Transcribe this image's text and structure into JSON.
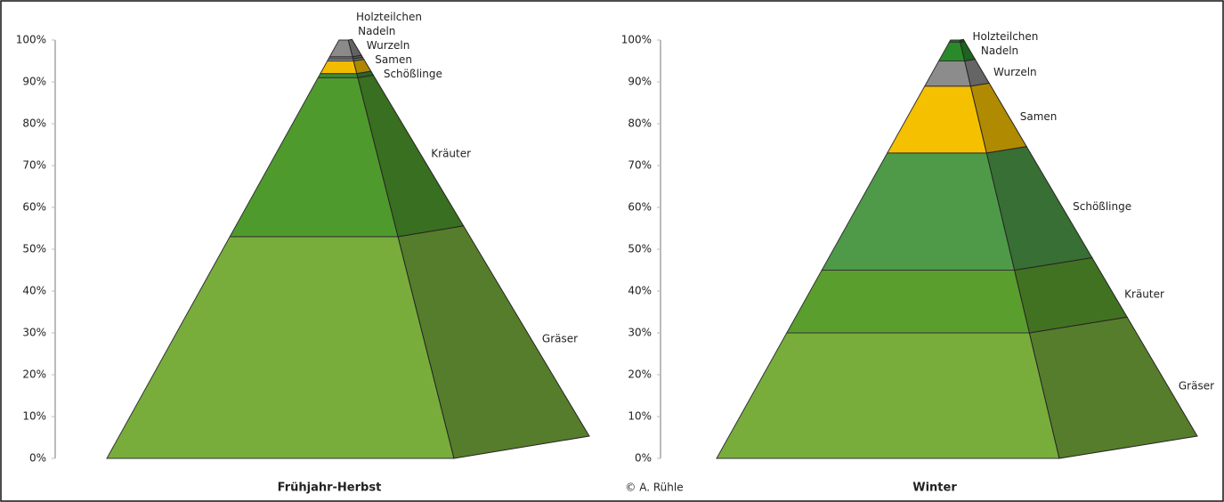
{
  "chart_data": [
    {
      "type": "pyramid",
      "title": "Frühjahr-Herbst",
      "categories": [
        "Gräser",
        "Kräuter",
        "Schößlinge",
        "Samen",
        "Wurzeln",
        "Nadeln",
        "Holzteilchen"
      ],
      "values": [
        53,
        38,
        1,
        3,
        0.5,
        0.5,
        4
      ],
      "colors": [
        "#78ad3c",
        "#4f9a2c",
        "#3f8a34",
        "#f2bb00",
        "#9a9a9a",
        "#7a7a7a",
        "#8a8a8a"
      ],
      "ylim": [
        0,
        100
      ],
      "yticks": [
        {
          "value": 0,
          "label": "0%"
        },
        {
          "value": 10,
          "label": "10%"
        },
        {
          "value": 20,
          "label": "20%"
        },
        {
          "value": 30,
          "label": "30%"
        },
        {
          "value": 40,
          "label": "40%"
        },
        {
          "value": 50,
          "label": "50%"
        },
        {
          "value": 60,
          "label": "60%"
        },
        {
          "value": 70,
          "label": "70%"
        },
        {
          "value": 80,
          "label": "80%"
        },
        {
          "value": 90,
          "label": "90%"
        },
        {
          "value": 100,
          "label": "100%"
        }
      ]
    },
    {
      "type": "pyramid",
      "title": "Winter",
      "categories": [
        "Gräser",
        "Kräuter",
        "Schößlinge",
        "Samen",
        "Wurzeln",
        "Nadeln",
        "Holzteilchen"
      ],
      "values": [
        30,
        15,
        28,
        16,
        6,
        4.5,
        0.5
      ],
      "colors": [
        "#78ad3c",
        "#5a9e2e",
        "#4e9a48",
        "#f5c000",
        "#8c8c8c",
        "#2a8a2a",
        "#1f6e1f"
      ],
      "ylim": [
        0,
        100
      ],
      "yticks": [
        {
          "value": 0,
          "label": "0%"
        },
        {
          "value": 10,
          "label": "10%"
        },
        {
          "value": 20,
          "label": "20%"
        },
        {
          "value": 30,
          "label": "30%"
        },
        {
          "value": 40,
          "label": "40%"
        },
        {
          "value": 50,
          "label": "50%"
        },
        {
          "value": 60,
          "label": "60%"
        },
        {
          "value": 70,
          "label": "70%"
        },
        {
          "value": 80,
          "label": "80%"
        },
        {
          "value": 90,
          "label": "90%"
        },
        {
          "value": 100,
          "label": "100%"
        }
      ]
    }
  ],
  "credit": "© A. Rühle"
}
